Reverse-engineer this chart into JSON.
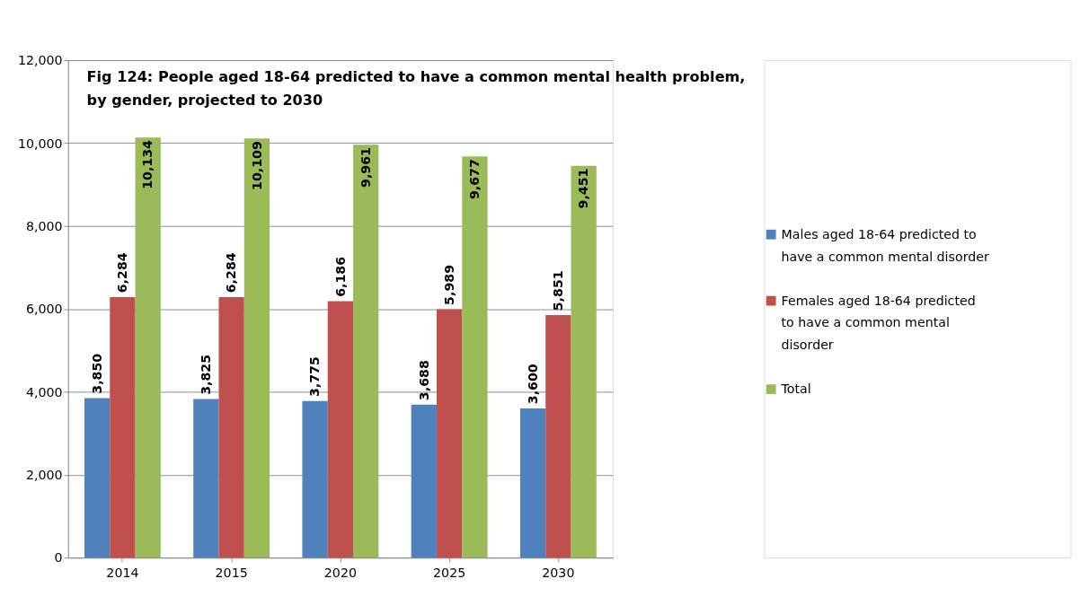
{
  "chart_data": {
    "type": "bar",
    "title": "Fig 124: People aged 18-64 predicted to have a common mental health problem, by gender, projected to 2030",
    "categories": [
      "2014",
      "2015",
      "2020",
      "2025",
      "2030"
    ],
    "series": [
      {
        "name": "Males aged 18-64 predicted to have a common mental disorder",
        "color": "#4f81bd",
        "values": [
          3850,
          3825,
          3775,
          3688,
          3600
        ],
        "value_labels": [
          "3,850",
          "3,825",
          "3,775",
          "3,688",
          "3,600"
        ]
      },
      {
        "name": "Females aged 18-64 predicted to have a common mental disorder",
        "color": "#c0504d",
        "values": [
          6284,
          6284,
          6186,
          5989,
          5851
        ],
        "value_labels": [
          "6,284",
          "6,284",
          "6,186",
          "5,989",
          "5,851"
        ]
      },
      {
        "name": "Total",
        "color": "#9bbb59",
        "values": [
          10134,
          10109,
          9961,
          9677,
          9451
        ],
        "value_labels": [
          "10,134",
          "10,109",
          "9,961",
          "9,677",
          "9,451"
        ]
      }
    ],
    "ylim": [
      0,
      12000
    ],
    "yticks": [
      {
        "value": 0,
        "label": "0"
      },
      {
        "value": 2000,
        "label": "2,000"
      },
      {
        "value": 4000,
        "label": "4,000"
      },
      {
        "value": 6000,
        "label": "6,000"
      },
      {
        "value": 8000,
        "label": "8,000"
      },
      {
        "value": 10000,
        "label": "10,000"
      },
      {
        "value": 12000,
        "label": "12,000"
      }
    ],
    "grid": "y",
    "legend": "right"
  }
}
